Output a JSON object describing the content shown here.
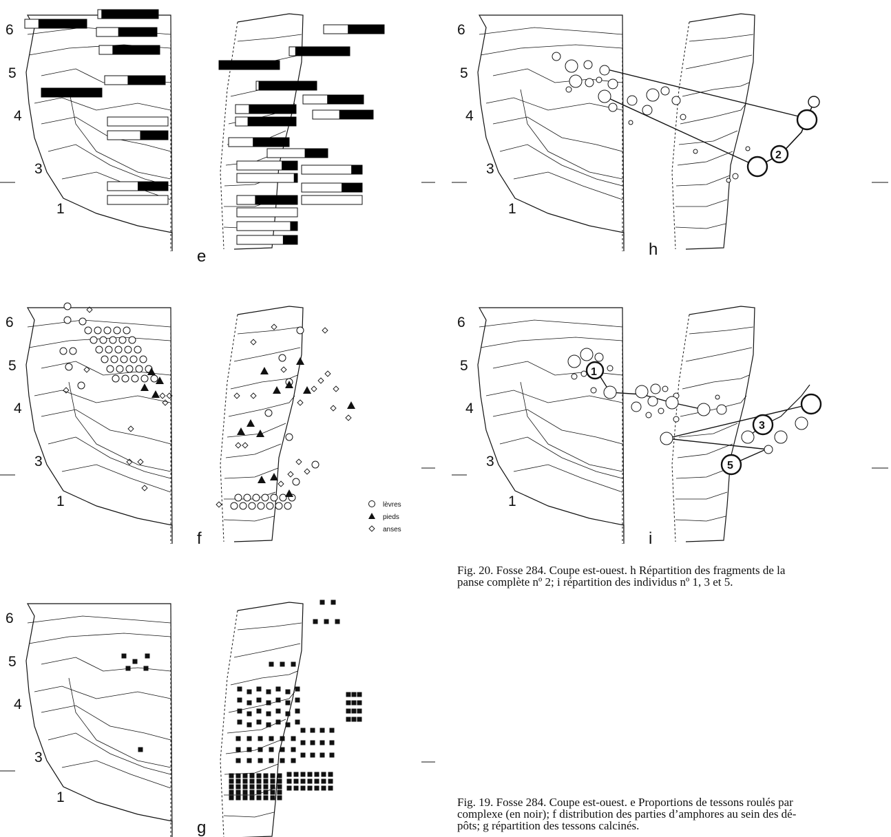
{
  "layers": [
    "6",
    "5",
    "4",
    "3",
    "1"
  ],
  "panels": {
    "e": {
      "letter": "e"
    },
    "f": {
      "letter": "f"
    },
    "g": {
      "letter": "g"
    },
    "h": {
      "letter": "h",
      "individual_labels": [
        "2"
      ]
    },
    "i": {
      "letter": "i",
      "individual_labels": [
        "1",
        "3",
        "5"
      ]
    }
  },
  "legend": [
    {
      "symbol": "circle",
      "label": "lèvres"
    },
    {
      "symbol": "triangle",
      "label": "pieds"
    },
    {
      "symbol": "diamond",
      "label": "anses"
    }
  ],
  "captions": {
    "fig20": {
      "line1": "Fig. 20. Fosse 284. Coupe est-ouest. h Répartition des fragments de la",
      "line2": "panse complète nº 2; i répartition des individus nº 1, 3 et 5."
    },
    "fig19": {
      "line1": "Fig. 19. Fosse 284. Coupe est-ouest. e Proportions de tessons roulés par",
      "line2": "complexe (en noir); f distribution des parties d’amphores au sein des dé-",
      "line3": "pôts; g répartition des tessons calcinés."
    }
  },
  "colors": {
    "ink": "#111111",
    "paper": "#ffffff",
    "fill_black": "#000000"
  }
}
